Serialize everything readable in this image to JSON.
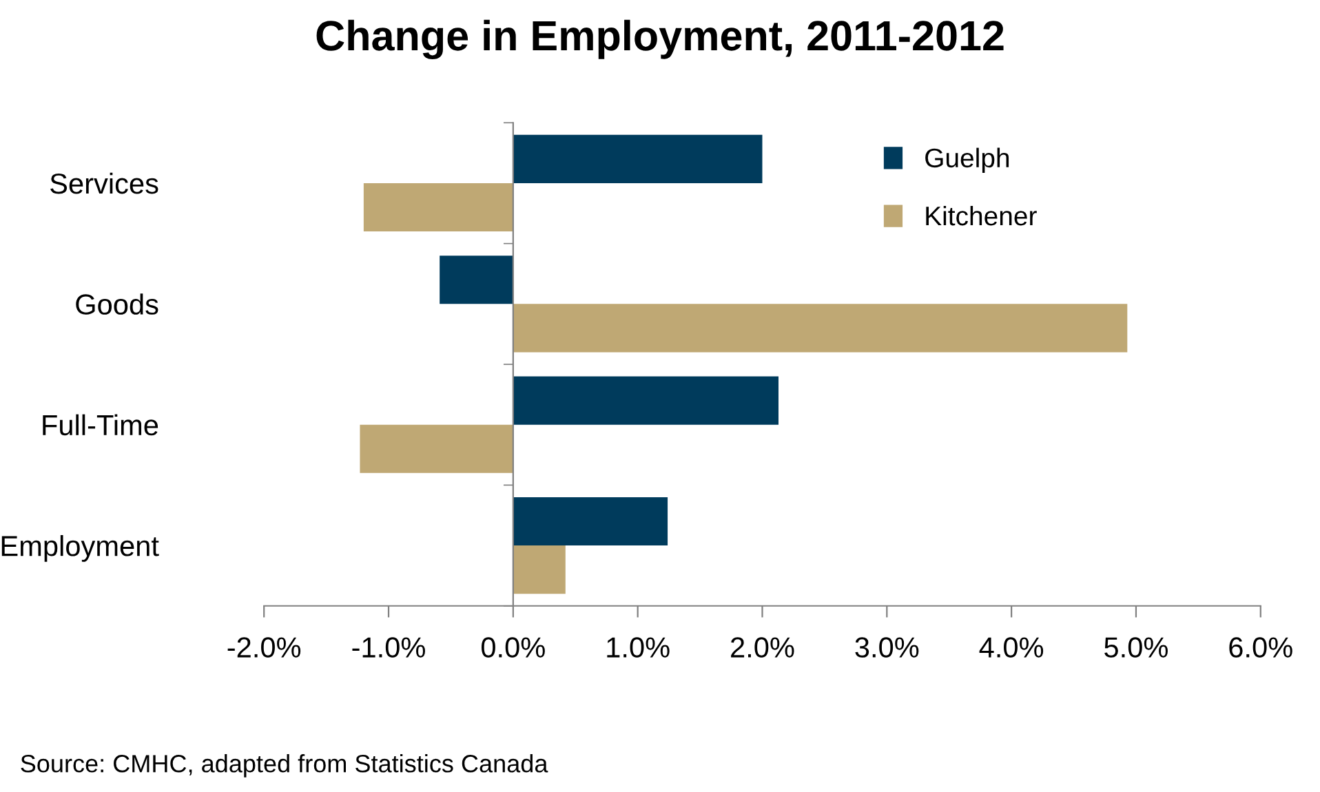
{
  "chart_data": {
    "type": "bar",
    "orientation": "horizontal",
    "title": "Change in Employment, 2011-2012",
    "categories": [
      "Services",
      "Goods",
      "Full-Time",
      "Employment"
    ],
    "series": [
      {
        "name": "Guelph",
        "color": "#003b5c",
        "values": [
          2.0,
          -0.59,
          2.13,
          1.24
        ]
      },
      {
        "name": "Kitchener",
        "color": "#bfa874",
        "values": [
          -1.2,
          4.93,
          -1.23,
          0.42
        ]
      }
    ],
    "xlim": [
      -2,
      6
    ],
    "xticks": [
      {
        "value": -2,
        "label": "-2.0%"
      },
      {
        "value": -1,
        "label": "-1.0%"
      },
      {
        "value": 0,
        "label": "0.0%"
      },
      {
        "value": 1,
        "label": "1.0%"
      },
      {
        "value": 2,
        "label": "2.0%"
      },
      {
        "value": 3,
        "label": "3.0%"
      },
      {
        "value": 4,
        "label": "4.0%"
      },
      {
        "value": 5,
        "label": "5.0%"
      },
      {
        "value": 6,
        "label": "6.0%"
      }
    ],
    "legend": "top right",
    "annotations": [
      "Source: CMHC, adapted from Statistics Canada"
    ]
  }
}
